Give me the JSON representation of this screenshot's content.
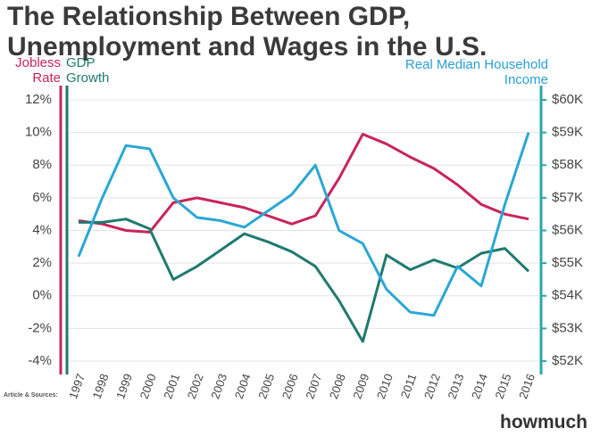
{
  "chart_data": {
    "type": "line",
    "title": "The Relationship Between GDP, Unemployment and Wages in the U.S.",
    "categories": [
      "1997",
      "1998",
      "1999",
      "2000",
      "2001",
      "2002",
      "2003",
      "2004",
      "2005",
      "2006",
      "2007",
      "2008",
      "2009",
      "2010",
      "2011",
      "2012",
      "2013",
      "2014",
      "2015",
      "2016"
    ],
    "series": [
      {
        "name": "Jobless Rate",
        "color": "#c8245a",
        "values": [
          4.6,
          4.4,
          4.0,
          3.9,
          5.7,
          6.0,
          5.7,
          5.4,
          4.9,
          4.4,
          4.9,
          7.2,
          9.9,
          9.3,
          8.5,
          7.8,
          6.8,
          5.6,
          5.0,
          4.7
        ]
      },
      {
        "name": "GDP Growth",
        "color": "#1f7a6e",
        "values": [
          4.5,
          4.5,
          4.7,
          4.1,
          1.0,
          1.8,
          2.8,
          3.8,
          3.3,
          2.7,
          1.8,
          -0.3,
          -2.8,
          2.5,
          1.6,
          2.2,
          1.7,
          2.6,
          2.9,
          1.5
        ]
      },
      {
        "name": "Real Median Household Income",
        "color": "#2aa7d6",
        "axis": "y2",
        "values": [
          55.2,
          57.0,
          58.6,
          58.5,
          57.0,
          56.4,
          56.3,
          56.1,
          56.6,
          57.1,
          58.0,
          56.0,
          55.6,
          54.2,
          53.5,
          53.4,
          54.9,
          54.3,
          56.8,
          59.0
        ]
      }
    ],
    "ylim": [
      -4,
      12
    ],
    "yticks": [
      {
        "value": -4,
        "label": "-4%"
      },
      {
        "value": -2,
        "label": "-2%"
      },
      {
        "value": 0,
        "label": "0%"
      },
      {
        "value": 2,
        "label": "2%"
      },
      {
        "value": 4,
        "label": "4%"
      },
      {
        "value": 6,
        "label": "6%"
      },
      {
        "value": 8,
        "label": "8%"
      },
      {
        "value": 10,
        "label": "10%"
      },
      {
        "value": 12,
        "label": "12%"
      }
    ],
    "y2lim": [
      52,
      60
    ],
    "y2ticks": [
      {
        "value": 52,
        "label": "$52K"
      },
      {
        "value": 53,
        "label": "$53K"
      },
      {
        "value": 54,
        "label": "$54K"
      },
      {
        "value": 55,
        "label": "$55K"
      },
      {
        "value": 56,
        "label": "$56K"
      },
      {
        "value": 57,
        "label": "$57K"
      },
      {
        "value": 58,
        "label": "$58K"
      },
      {
        "value": 59,
        "label": "$59K"
      },
      {
        "value": 60,
        "label": "$60K"
      }
    ],
    "grid": true,
    "source": "Article & Sources:",
    "brand": "howmuch"
  }
}
